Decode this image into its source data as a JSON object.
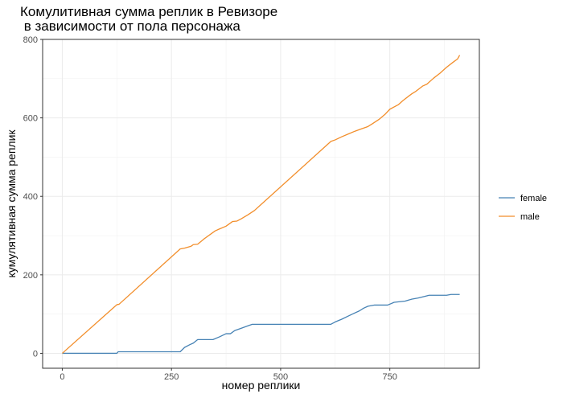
{
  "chart_data": {
    "type": "line",
    "title": [
      "Комулитивная сумма реплик в Ревизоре",
      " в зависимости от пола персонажа"
    ],
    "xlabel": "номер реплики",
    "ylabel": "кумулятивная сумма реплик",
    "xlim": [
      -45,
      955
    ],
    "ylim": [
      -38,
      800
    ],
    "x_ticks": [
      0,
      250,
      500,
      750
    ],
    "y_ticks": [
      0,
      200,
      400,
      600,
      800
    ],
    "grid": true,
    "legend_position": "right",
    "series": [
      {
        "name": "female",
        "color": "#4682b4",
        "points": [
          [
            0,
            0
          ],
          [
            125,
            0
          ],
          [
            128,
            4
          ],
          [
            270,
            4
          ],
          [
            280,
            15
          ],
          [
            292,
            22
          ],
          [
            300,
            26
          ],
          [
            310,
            35
          ],
          [
            345,
            35
          ],
          [
            360,
            42
          ],
          [
            375,
            50
          ],
          [
            385,
            50
          ],
          [
            395,
            58
          ],
          [
            410,
            64
          ],
          [
            425,
            70
          ],
          [
            435,
            74
          ],
          [
            615,
            74
          ],
          [
            625,
            80
          ],
          [
            640,
            87
          ],
          [
            655,
            95
          ],
          [
            670,
            103
          ],
          [
            680,
            108
          ],
          [
            690,
            115
          ],
          [
            700,
            120
          ],
          [
            715,
            123
          ],
          [
            745,
            123
          ],
          [
            760,
            130
          ],
          [
            785,
            133
          ],
          [
            800,
            138
          ],
          [
            815,
            141
          ],
          [
            830,
            145
          ],
          [
            840,
            148
          ],
          [
            880,
            148
          ],
          [
            890,
            150
          ],
          [
            910,
            150
          ]
        ]
      },
      {
        "name": "male",
        "color": "#f28e2b",
        "points": [
          [
            0,
            0
          ],
          [
            120,
            119
          ],
          [
            125,
            124
          ],
          [
            130,
            125
          ],
          [
            270,
            266
          ],
          [
            280,
            268
          ],
          [
            295,
            273
          ],
          [
            300,
            277
          ],
          [
            310,
            278
          ],
          [
            325,
            292
          ],
          [
            350,
            312
          ],
          [
            360,
            317
          ],
          [
            375,
            324
          ],
          [
            390,
            336
          ],
          [
            400,
            337
          ],
          [
            410,
            343
          ],
          [
            425,
            353
          ],
          [
            440,
            364
          ],
          [
            615,
            540
          ],
          [
            625,
            544
          ],
          [
            640,
            552
          ],
          [
            655,
            559
          ],
          [
            670,
            566
          ],
          [
            685,
            572
          ],
          [
            695,
            576
          ],
          [
            700,
            578
          ],
          [
            710,
            585
          ],
          [
            725,
            596
          ],
          [
            740,
            610
          ],
          [
            750,
            622
          ],
          [
            760,
            628
          ],
          [
            770,
            634
          ],
          [
            780,
            644
          ],
          [
            795,
            657
          ],
          [
            800,
            661
          ],
          [
            810,
            668
          ],
          [
            825,
            681
          ],
          [
            835,
            686
          ],
          [
            850,
            701
          ],
          [
            865,
            714
          ],
          [
            880,
            729
          ],
          [
            895,
            742
          ],
          [
            905,
            750
          ],
          [
            910,
            760
          ]
        ]
      }
    ]
  }
}
